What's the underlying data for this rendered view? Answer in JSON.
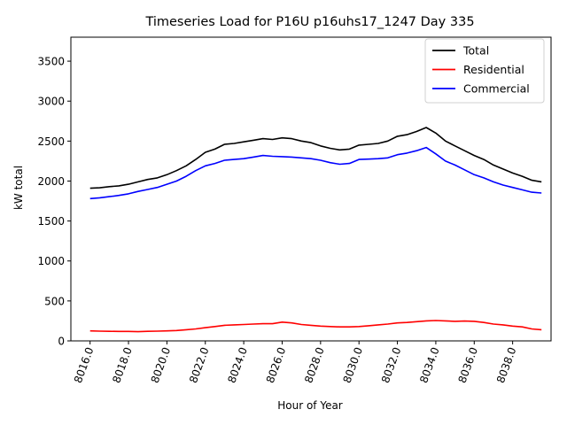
{
  "chart_data": {
    "type": "line",
    "title": "Timeseries Load for P16U p16uhs17_1247  Day 335",
    "xlabel": "Hour of Year",
    "ylabel": "kW total",
    "xlim": [
      8015.0,
      8040.0
    ],
    "ylim": [
      0,
      3800
    ],
    "xticks": [
      8016,
      8018,
      8020,
      8022,
      8024,
      8026,
      8028,
      8030,
      8032,
      8034,
      8036,
      8038
    ],
    "xtick_labels": [
      "8016.0",
      "8018.0",
      "8020.0",
      "8022.0",
      "8024.0",
      "8026.0",
      "8028.0",
      "8030.0",
      "8032.0",
      "8034.0",
      "8036.0",
      "8038.0"
    ],
    "yticks": [
      0,
      500,
      1000,
      1500,
      2000,
      2500,
      3000,
      3500
    ],
    "ytick_labels": [
      "0",
      "500",
      "1000",
      "1500",
      "2000",
      "2500",
      "3000",
      "3500"
    ],
    "legend_position": "top-right",
    "series": [
      {
        "name": "Total",
        "color": "#000000",
        "x": [
          8016.0,
          8016.5,
          8017.0,
          8017.5,
          8018.0,
          8018.5,
          8019.0,
          8019.5,
          8020.0,
          8020.5,
          8021.0,
          8021.5,
          8022.0,
          8022.5,
          8023.0,
          8023.5,
          8024.0,
          8024.5,
          8025.0,
          8025.5,
          8026.0,
          8026.5,
          8027.0,
          8027.5,
          8028.0,
          8028.5,
          8029.0,
          8029.5,
          8030.0,
          8030.5,
          8031.0,
          8031.5,
          8032.0,
          8032.5,
          8033.0,
          8033.5,
          8034.0,
          8034.5,
          8035.0,
          8035.5,
          8036.0,
          8036.5,
          8037.0,
          8037.5,
          8038.0,
          8038.5,
          8039.0,
          8039.5
        ],
        "values": [
          1910,
          1915,
          1930,
          1940,
          1960,
          1990,
          2020,
          2040,
          2080,
          2130,
          2190,
          2270,
          2360,
          2400,
          2460,
          2470,
          2490,
          2510,
          2530,
          2520,
          2540,
          2530,
          2500,
          2480,
          2440,
          2410,
          2390,
          2400,
          2450,
          2460,
          2470,
          2500,
          2560,
          2580,
          2620,
          2670,
          2600,
          2500,
          2440,
          2380,
          2320,
          2270,
          2200,
          2150,
          2100,
          2060,
          2010,
          1990
        ]
      },
      {
        "name": "Residential",
        "color": "#ff0000",
        "x": [
          8016.0,
          8016.5,
          8017.0,
          8017.5,
          8018.0,
          8018.5,
          8019.0,
          8019.5,
          8020.0,
          8020.5,
          8021.0,
          8021.5,
          8022.0,
          8022.5,
          8023.0,
          8023.5,
          8024.0,
          8024.5,
          8025.0,
          8025.5,
          8026.0,
          8026.5,
          8027.0,
          8027.5,
          8028.0,
          8028.5,
          8029.0,
          8029.5,
          8030.0,
          8030.5,
          8031.0,
          8031.5,
          8032.0,
          8032.5,
          8033.0,
          8033.5,
          8034.0,
          8034.5,
          8035.0,
          8035.5,
          8036.0,
          8036.5,
          8037.0,
          8037.5,
          8038.0,
          8038.5,
          8039.0,
          8039.5
        ],
        "values": [
          125,
          122,
          120,
          118,
          118,
          115,
          120,
          122,
          125,
          130,
          140,
          150,
          165,
          180,
          195,
          200,
          205,
          210,
          215,
          215,
          235,
          225,
          205,
          195,
          185,
          180,
          175,
          175,
          180,
          190,
          200,
          210,
          225,
          230,
          240,
          250,
          255,
          250,
          245,
          248,
          245,
          230,
          210,
          200,
          185,
          175,
          150,
          140
        ]
      },
      {
        "name": "Commercial",
        "color": "#0000ff",
        "x": [
          8016.0,
          8016.5,
          8017.0,
          8017.5,
          8018.0,
          8018.5,
          8019.0,
          8019.5,
          8020.0,
          8020.5,
          8021.0,
          8021.5,
          8022.0,
          8022.5,
          8023.0,
          8023.5,
          8024.0,
          8024.5,
          8025.0,
          8025.5,
          8026.0,
          8026.5,
          8027.0,
          8027.5,
          8028.0,
          8028.5,
          8029.0,
          8029.5,
          8030.0,
          8030.5,
          8031.0,
          8031.5,
          8032.0,
          8032.5,
          8033.0,
          8033.5,
          8034.0,
          8034.5,
          8035.0,
          8035.5,
          8036.0,
          8036.5,
          8037.0,
          8037.5,
          8038.0,
          8038.5,
          8039.0,
          8039.5
        ],
        "values": [
          1780,
          1790,
          1805,
          1820,
          1840,
          1870,
          1895,
          1920,
          1960,
          2000,
          2060,
          2130,
          2190,
          2220,
          2260,
          2270,
          2280,
          2300,
          2320,
          2310,
          2305,
          2300,
          2290,
          2280,
          2260,
          2230,
          2210,
          2220,
          2270,
          2275,
          2280,
          2290,
          2330,
          2350,
          2380,
          2420,
          2340,
          2250,
          2200,
          2140,
          2080,
          2040,
          1990,
          1950,
          1920,
          1890,
          1860,
          1850
        ]
      }
    ]
  }
}
